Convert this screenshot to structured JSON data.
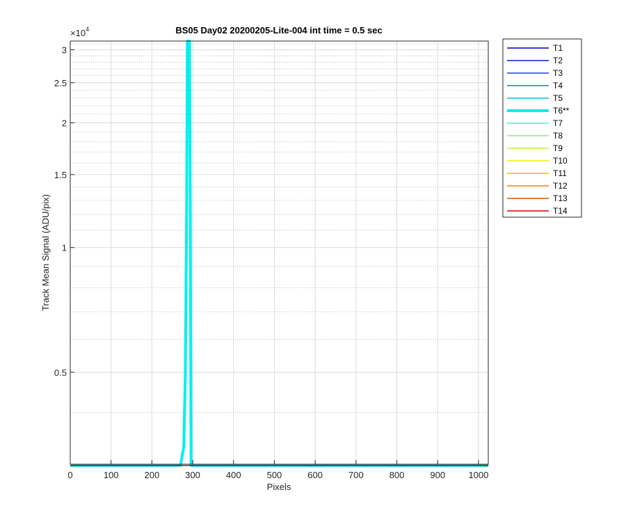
{
  "chart_data": {
    "type": "line",
    "title": "BS05 Day02 20200205-Lite-004 int time = 0.5 sec",
    "xlabel": "Pixels",
    "ylabel": "Track Mean Signal (ADU/pix)",
    "y_exponent_label": "×10",
    "y_exponent": "4",
    "xlim": [
      0,
      1024
    ],
    "ylim": [
      3000,
      31500
    ],
    "y_scale": "log",
    "grid": true,
    "minor_grid": true,
    "legend_position": "outside-top-right",
    "x_ticks": [
      0,
      100,
      200,
      300,
      400,
      500,
      600,
      700,
      800,
      900,
      1000
    ],
    "x_tick_labels": [
      "0",
      "100",
      "200",
      "300",
      "400",
      "500",
      "600",
      "700",
      "800",
      "900",
      "1000"
    ],
    "y_ticks": [
      5000,
      10000,
      15000,
      20000,
      25000,
      30000
    ],
    "y_tick_labels": [
      "0.5",
      "1",
      "1.5",
      "2",
      "2.5",
      "3"
    ],
    "y_minor_ticks": [
      4000,
      6000,
      7000,
      8000,
      9000,
      11000,
      12000,
      13000,
      14000,
      16000,
      17000,
      18000,
      19000,
      21000,
      22000,
      23000,
      24000,
      26000,
      27000,
      28000,
      29000,
      31000
    ],
    "series": [
      {
        "name": "T1",
        "color": "#0000a8",
        "width": 1.5,
        "x": [
          0,
          1024
        ],
        "y": [
          2980,
          2980
        ]
      },
      {
        "name": "T2",
        "color": "#0018d8",
        "width": 1.5,
        "x": [
          0,
          1024
        ],
        "y": [
          2980,
          2980
        ]
      },
      {
        "name": "T3",
        "color": "#1040f0",
        "width": 1.5,
        "x": [
          0,
          1024
        ],
        "y": [
          2980,
          2980
        ]
      },
      {
        "name": "T4",
        "color": "#1878e0",
        "width": 1.5,
        "x": [
          0,
          1024
        ],
        "y": [
          2980,
          2980
        ]
      },
      {
        "name": "T5",
        "color": "#10b8f0",
        "width": 1.5,
        "x": [
          0,
          1024
        ],
        "y": [
          2980,
          2980
        ]
      },
      {
        "name": "T6**",
        "color": "#00f0f0",
        "width": 4,
        "x": [
          0,
          270,
          278,
          282,
          285,
          287,
          289,
          292,
          294,
          296,
          1024
        ],
        "y": [
          2980,
          2980,
          3300,
          5000,
          12000,
          31500,
          31500,
          31500,
          12000,
          2980,
          2980
        ]
      },
      {
        "name": "T7",
        "color": "#40f0c8",
        "width": 1.5,
        "x": [
          0,
          1024
        ],
        "y": [
          2980,
          2980
        ]
      },
      {
        "name": "T8",
        "color": "#80f080",
        "width": 1.5,
        "x": [
          0,
          1024
        ],
        "y": [
          2980,
          2980
        ]
      },
      {
        "name": "T9",
        "color": "#b8f040",
        "width": 1.5,
        "x": [
          0,
          1024
        ],
        "y": [
          2980,
          2980
        ]
      },
      {
        "name": "T10",
        "color": "#f0f000",
        "width": 1.5,
        "x": [
          0,
          1024
        ],
        "y": [
          2980,
          2980
        ]
      },
      {
        "name": "T11",
        "color": "#f0b800",
        "width": 1.5,
        "x": [
          0,
          1024
        ],
        "y": [
          2980,
          2980
        ]
      },
      {
        "name": "T12",
        "color": "#f08000",
        "width": 1.5,
        "x": [
          0,
          1024
        ],
        "y": [
          2980,
          2980
        ]
      },
      {
        "name": "T13",
        "color": "#f04800",
        "width": 1.5,
        "x": [
          0,
          1024
        ],
        "y": [
          2980,
          2980
        ]
      },
      {
        "name": "T14",
        "color": "#d80000",
        "width": 1.5,
        "x": [
          0,
          1024
        ],
        "y": [
          2980,
          2980
        ]
      }
    ]
  }
}
